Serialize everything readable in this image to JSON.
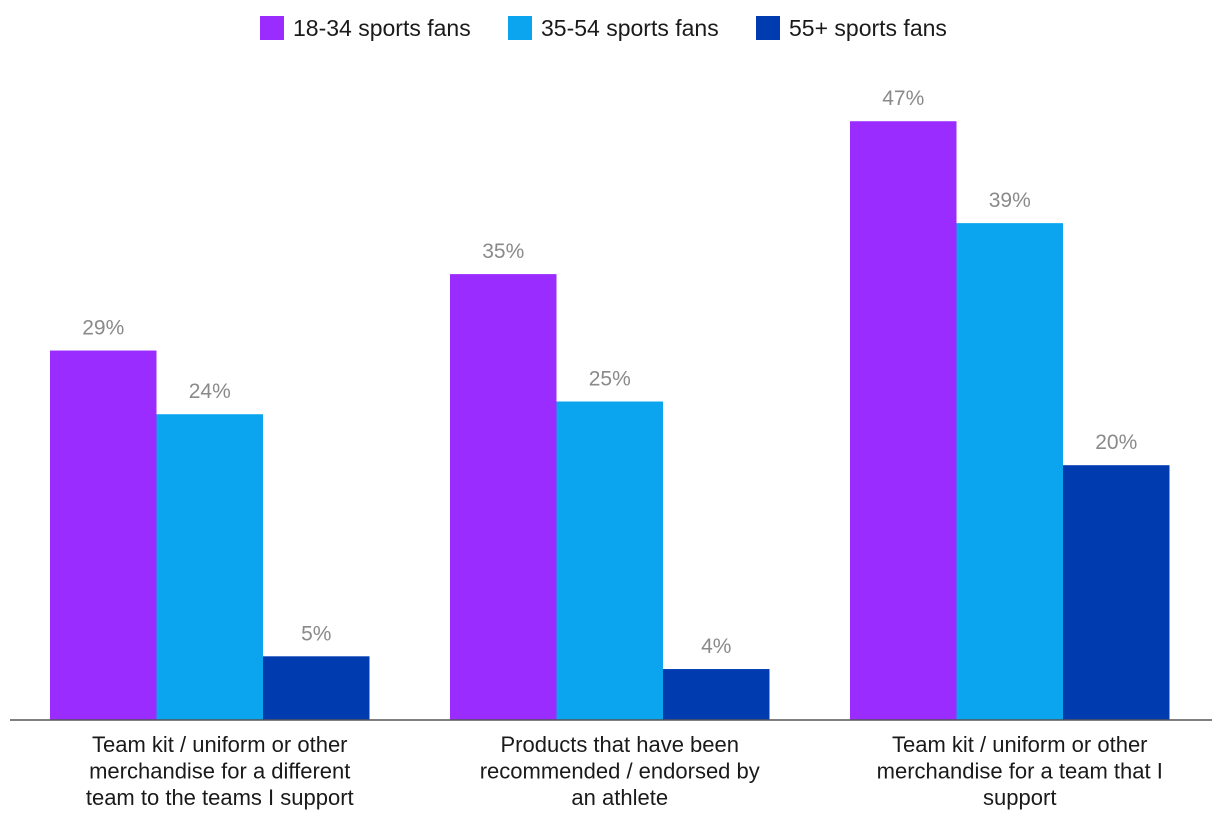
{
  "chart_data": {
    "type": "bar",
    "title": "",
    "xlabel": "",
    "ylabel": "",
    "ylim": [
      0,
      50
    ],
    "grid": false,
    "legend_position": "top-center",
    "value_suffix": "%",
    "categories": [
      [
        "Team kit / uniform or other",
        "merchandise for a different",
        "team to the teams I support"
      ],
      [
        "Products that have been",
        "recommended / endorsed by",
        "an athlete"
      ],
      [
        "Team kit / uniform or other",
        "merchandise for a team that I",
        "support"
      ]
    ],
    "series": [
      {
        "name": "18-34 sports fans",
        "color": "#9b2cff",
        "values": [
          29,
          35,
          47
        ]
      },
      {
        "name": "35-54 sports fans",
        "color": "#0aa5ee",
        "values": [
          24,
          25,
          39
        ]
      },
      {
        "name": "55+ sports fans",
        "color": "#003caf",
        "values": [
          5,
          4,
          20
        ]
      }
    ],
    "value_labels": [
      [
        "29%",
        "35%",
        "47%"
      ],
      [
        "24%",
        "25%",
        "39%"
      ],
      [
        "5%",
        "4%",
        "20%"
      ]
    ]
  }
}
